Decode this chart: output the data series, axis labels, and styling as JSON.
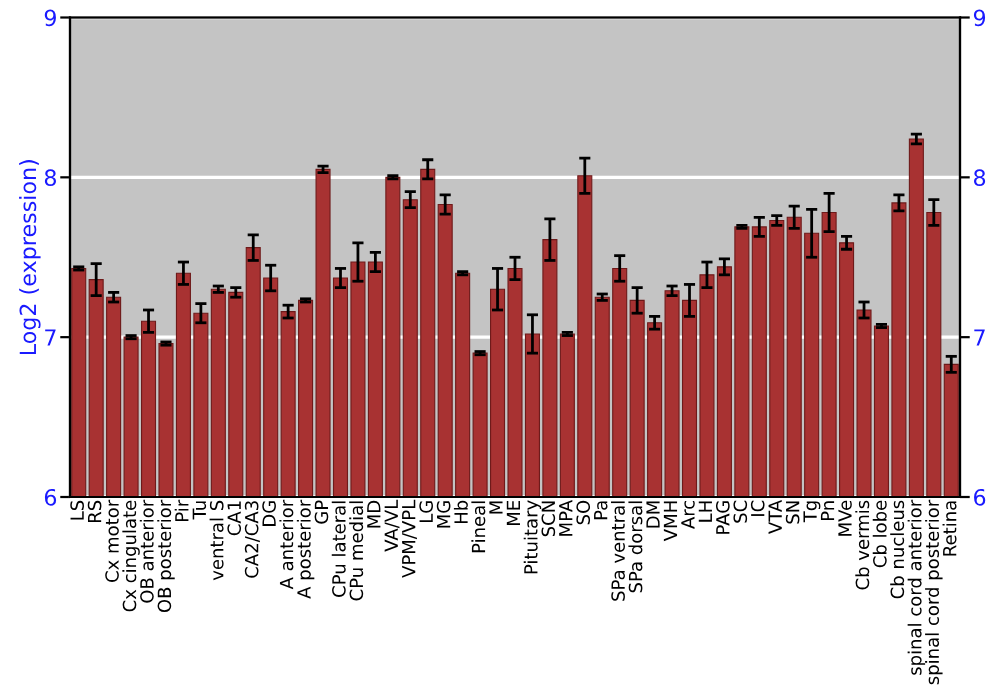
{
  "chart_data": {
    "type": "bar",
    "ylabel": "Log2 (expression)",
    "categories": [
      "LS",
      "RS",
      "Cx motor",
      "Cx cingulate",
      "OB anterior",
      "OB posterior",
      "Pir",
      "Tu",
      "ventral S",
      "CA1",
      "CA2/CA3",
      "DG",
      "A anterior",
      "A posterior",
      "GP",
      "CPu lateral",
      "CPu medial",
      "MD",
      "VA/VL",
      "VPM/VPL",
      "LG",
      "MG",
      "Hb",
      "Pineal",
      "M",
      "ME",
      "Pituitary",
      "SCN",
      "MPA",
      "SO",
      "Pa",
      "SPa ventral",
      "SPa dorsal",
      "DM",
      "VMH",
      "Arc",
      "LH",
      "PAG",
      "SC",
      "IC",
      "VTA",
      "SN",
      "Tg",
      "Pn",
      "MVe",
      "Cb vermis",
      "Cb lobe",
      "Cb nucleus",
      "spinal cord anterior",
      "spinal cord posterior",
      "Retina"
    ],
    "values": [
      7.43,
      7.36,
      7.25,
      7.0,
      7.1,
      6.96,
      7.4,
      7.15,
      7.3,
      7.28,
      7.56,
      7.37,
      7.16,
      7.23,
      8.05,
      7.37,
      7.47,
      7.47,
      8.0,
      7.86,
      8.05,
      7.83,
      7.4,
      6.9,
      7.3,
      7.43,
      7.02,
      7.61,
      7.02,
      8.01,
      7.25,
      7.43,
      7.23,
      7.09,
      7.29,
      7.23,
      7.39,
      7.44,
      7.69,
      7.69,
      7.73,
      7.75,
      7.65,
      7.78,
      7.59,
      7.17,
      7.07,
      7.84,
      8.24,
      7.78,
      6.83
    ],
    "errors": [
      0.01,
      0.1,
      0.03,
      0.01,
      0.07,
      0.01,
      0.07,
      0.06,
      0.02,
      0.03,
      0.08,
      0.08,
      0.04,
      0.01,
      0.02,
      0.06,
      0.12,
      0.06,
      0.01,
      0.05,
      0.06,
      0.06,
      0.01,
      0.01,
      0.13,
      0.07,
      0.12,
      0.13,
      0.01,
      0.11,
      0.02,
      0.08,
      0.08,
      0.04,
      0.03,
      0.1,
      0.08,
      0.05,
      0.01,
      0.06,
      0.03,
      0.07,
      0.15,
      0.12,
      0.04,
      0.05,
      0.01,
      0.05,
      0.03,
      0.08,
      0.05
    ],
    "color": "#a83232",
    "ylim": [
      6,
      9
    ],
    "yticks": [
      6,
      7,
      8,
      9
    ],
    "y2lim": [
      6,
      9
    ],
    "y2ticks": [
      6,
      7,
      8,
      9
    ],
    "grid": "y"
  }
}
